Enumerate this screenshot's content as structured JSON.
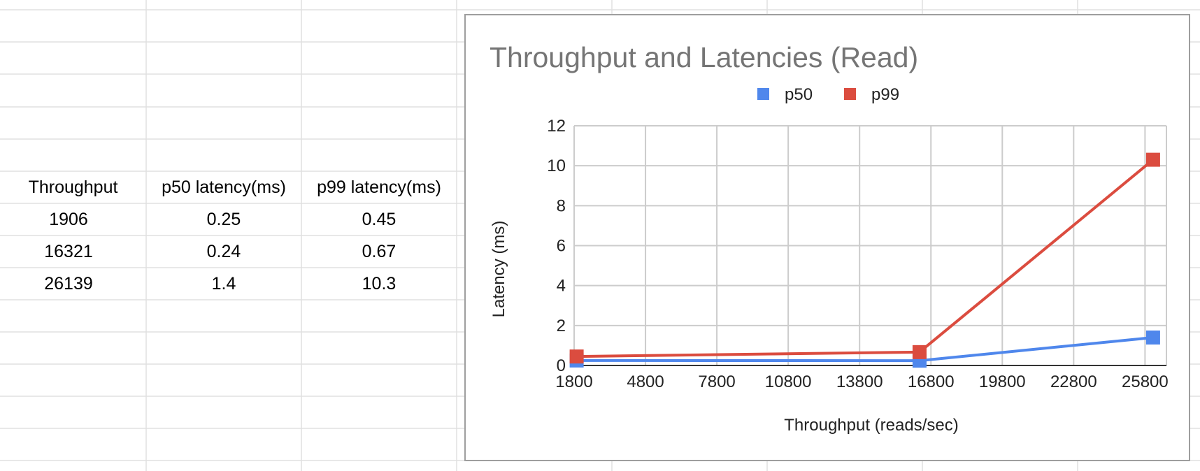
{
  "sheet": {
    "headers": [
      "Throughput",
      "p50 latency(ms)",
      "p99 latency(ms)"
    ],
    "rows": [
      [
        "1906",
        "0.25",
        "0.45"
      ],
      [
        "16321",
        "0.24",
        "0.67"
      ],
      [
        "26139",
        "1.4",
        "10.3"
      ]
    ]
  },
  "chart_data": {
    "type": "line",
    "title": "Throughput and Latencies (Read)",
    "xlabel": "Throughput (reads/sec)",
    "ylabel": "Latency (ms)",
    "x": [
      1906,
      16321,
      26139
    ],
    "series": [
      {
        "name": "p50",
        "values": [
          0.25,
          0.24,
          1.4
        ],
        "color": "#4f87ec"
      },
      {
        "name": "p99",
        "values": [
          0.45,
          0.67,
          10.3
        ],
        "color": "#db4c3f"
      }
    ],
    "xlim": [
      1800,
      26700
    ],
    "ylim": [
      0,
      12
    ],
    "xticks": [
      1800,
      4800,
      7800,
      10800,
      13800,
      16800,
      19800,
      22800,
      25800
    ],
    "yticks": [
      0,
      2,
      4,
      6,
      8,
      10,
      12
    ],
    "grid": true,
    "legend": "top"
  }
}
